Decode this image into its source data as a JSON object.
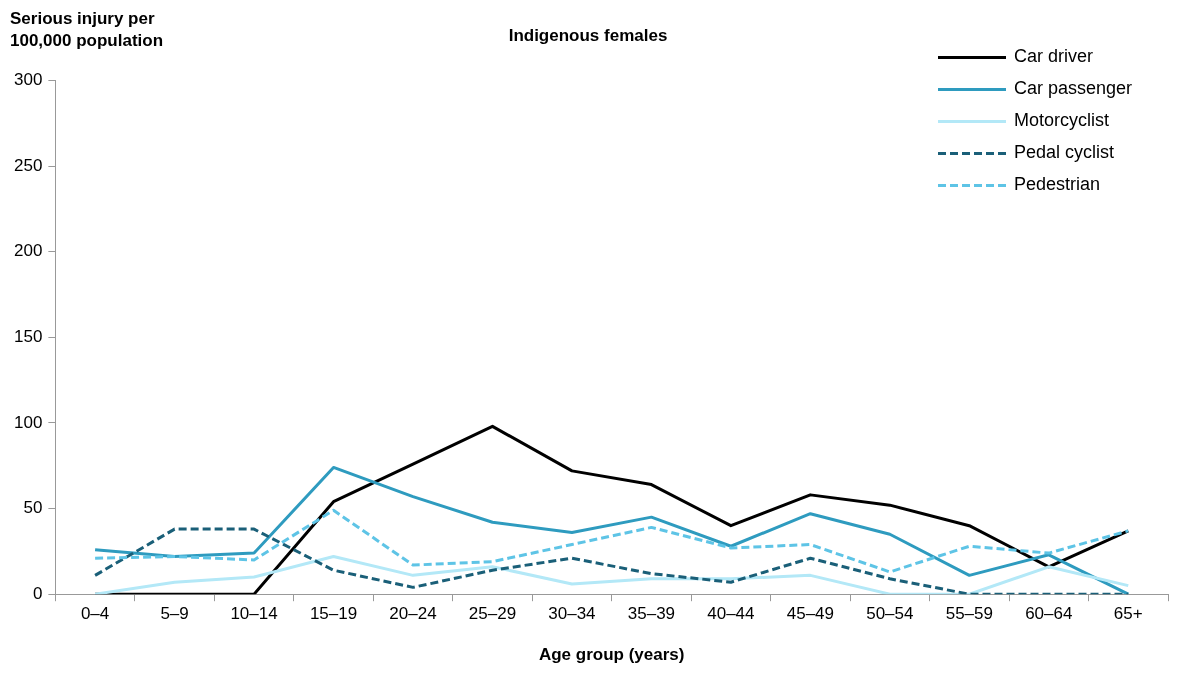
{
  "chart_data": {
    "type": "line",
    "title": "Indigenous females",
    "xlabel": "Age group (years)",
    "ylabel": "Serious injury per 100,000 population",
    "categories": [
      "0–4",
      "5–9",
      "10–14",
      "15–19",
      "20–24",
      "25–29",
      "30–34",
      "35–39",
      "40–44",
      "45–49",
      "50–54",
      "55–59",
      "60–64",
      "65+"
    ],
    "series": [
      {
        "name": "Car driver",
        "color": "#000000",
        "line_style": "solid",
        "values": [
          0,
          0,
          0,
          54,
          76,
          98,
          72,
          64,
          40,
          58,
          52,
          40,
          16,
          37
        ]
      },
      {
        "name": "Car passenger",
        "color": "#2e9bbf",
        "line_style": "solid",
        "values": [
          26,
          22,
          24,
          74,
          57,
          42,
          36,
          45,
          28,
          47,
          35,
          11,
          23,
          0
        ]
      },
      {
        "name": "Motorcyclist",
        "color": "#b3e8f7",
        "line_style": "solid",
        "values": [
          0,
          7,
          10,
          22,
          11,
          16,
          6,
          9,
          9,
          11,
          0,
          0,
          16,
          5
        ]
      },
      {
        "name": "Pedal cyclist",
        "color": "#1a5f78",
        "line_style": "dashed",
        "values": [
          11,
          38,
          38,
          14,
          4,
          14,
          21,
          12,
          7,
          21,
          9,
          0,
          0,
          0
        ]
      },
      {
        "name": "Pedestrian",
        "color": "#5ec4e6",
        "line_style": "dashed",
        "values": [
          21,
          22,
          20,
          49,
          17,
          19,
          29,
          39,
          27,
          29,
          13,
          28,
          24,
          37
        ]
      }
    ],
    "ylim": [
      0,
      300
    ],
    "yticks": [
      0,
      50,
      100,
      150,
      200,
      250,
      300
    ],
    "grid": false,
    "legend": "top right",
    "marker": "none"
  }
}
